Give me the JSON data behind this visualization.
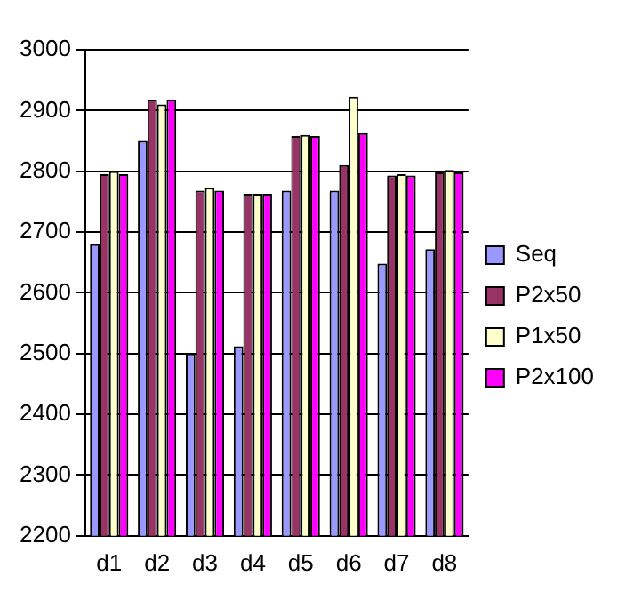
{
  "chart_data": {
    "type": "bar",
    "categories": [
      "d1",
      "d2",
      "d3",
      "d4",
      "d5",
      "d6",
      "d7",
      "d8"
    ],
    "series": [
      {
        "name": "Seq",
        "color": "#9999ff",
        "values": [
          2680,
          2850,
          2500,
          2512,
          2768,
          2768,
          2648,
          2672
        ]
      },
      {
        "name": "P2x50",
        "color": "#993366",
        "values": [
          2795,
          2918,
          2768,
          2763,
          2858,
          2810,
          2793,
          2798
        ]
      },
      {
        "name": "P1x50",
        "color": "#ffffcc",
        "values": [
          2800,
          2910,
          2773,
          2763,
          2860,
          2923,
          2795,
          2802
        ]
      },
      {
        "name": "P2x100",
        "color": "#ff00ff",
        "values": [
          2795,
          2918,
          2768,
          2763,
          2858,
          2863,
          2793,
          2798
        ]
      }
    ],
    "ylim": [
      2200,
      3000
    ],
    "yticks": [
      2200,
      2300,
      2400,
      2500,
      2600,
      2700,
      2800,
      2900,
      3000
    ],
    "grid": "y",
    "legend": "right"
  }
}
